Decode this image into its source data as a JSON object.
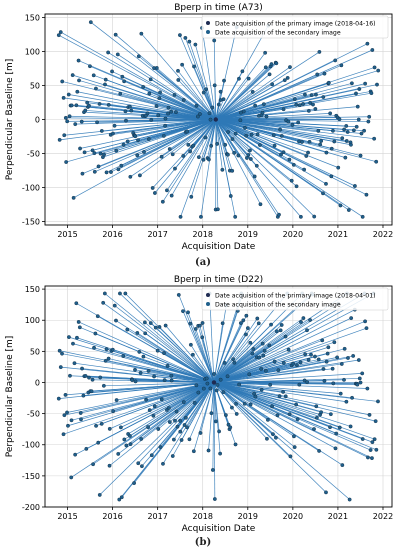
{
  "colors": {
    "primary_marker": "#1f2b52",
    "secondary_marker": "#1f5f8b",
    "line": "#2f79b7",
    "grid": "#d4d4d4",
    "axis": "#000000"
  },
  "chart_data": [
    {
      "type": "scatter",
      "title": "Bperp in time (A73)",
      "xlabel": "Acquisition Date",
      "ylabel": "Perpendicular Baseline [m]",
      "caption": "(a)",
      "xlim": [
        2014.5,
        2022.2
      ],
      "ylim": [
        -155,
        155
      ],
      "xticks": [
        2015,
        2016,
        2017,
        2018,
        2019,
        2020,
        2021,
        2022
      ],
      "yticks": [
        150,
        100,
        50,
        0,
        -50,
        -100,
        -150
      ],
      "grid": true,
      "legend": {
        "placement": "top-right",
        "entries": [
          "Date acquisition of the primary image (2018-04-16)",
          "Date acquisition of the secondary image"
        ]
      },
      "primary": {
        "x": 2018.29,
        "y": 0
      },
      "secondary_count": 300,
      "secondary_seed": 7
    },
    {
      "type": "scatter",
      "title": "Bperp in time (D22)",
      "xlabel": "Acquisition Date",
      "ylabel": "Perpendicular Baseline [m]",
      "caption": "(b)",
      "xlim": [
        2014.5,
        2022.2
      ],
      "ylim": [
        -200,
        155
      ],
      "xticks": [
        2015,
        2016,
        2017,
        2018,
        2019,
        2020,
        2021,
        2022
      ],
      "yticks": [
        150,
        100,
        50,
        0,
        -50,
        -100,
        -150,
        -200
      ],
      "grid": true,
      "legend": {
        "placement": "top-right",
        "entries": [
          "Date acquisition of the primary image (2018-04-01)",
          "Date acquisition of the secondary image"
        ]
      },
      "primary": {
        "x": 2018.25,
        "y": 0
      },
      "secondary_count": 300,
      "secondary_seed": 13
    }
  ]
}
